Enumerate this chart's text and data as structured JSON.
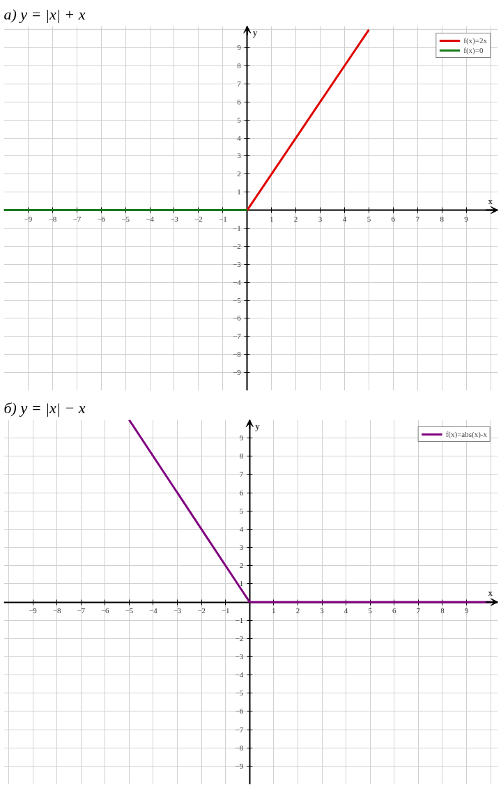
{
  "chart_data": [
    {
      "type": "line",
      "title": "а) y = |x| + x",
      "xlabel": "x",
      "ylabel": "y",
      "series": [
        {
          "name": "f(x)=2x",
          "color": "#e00000",
          "x": [
            0,
            5
          ],
          "values": [
            0,
            10
          ]
        },
        {
          "name": "f(x)=0",
          "color": "#1a7a1a",
          "x": [
            -10,
            0
          ],
          "values": [
            0,
            0
          ]
        }
      ],
      "xlim": [
        -10,
        10.3
      ],
      "ylim": [
        -10,
        10.2
      ],
      "xticks": [
        -9,
        -8,
        -7,
        -6,
        -5,
        -4,
        -3,
        -2,
        -1,
        1,
        2,
        3,
        4,
        5,
        6,
        7,
        8,
        9
      ],
      "yticks": [
        -9,
        -8,
        -7,
        -6,
        -5,
        -4,
        -3,
        -2,
        -1,
        1,
        2,
        3,
        4,
        5,
        6,
        7,
        8,
        9
      ],
      "grid": true,
      "legend": "top right",
      "marker": "none",
      "line_style": "solid"
    },
    {
      "type": "line",
      "title": "б) y = |x| − x",
      "xlabel": "x",
      "ylabel": "y",
      "series": [
        {
          "name": "f(x)=abs(x)-x",
          "color": "#800080",
          "x": [
            -5,
            0,
            10
          ],
          "values": [
            10,
            0,
            0
          ]
        }
      ],
      "xlim": [
        -10.2,
        10.3
      ],
      "ylim": [
        -10,
        10
      ],
      "xticks": [
        -9,
        -8,
        -7,
        -6,
        -5,
        -4,
        -3,
        -2,
        -1,
        1,
        2,
        3,
        4,
        5,
        6,
        7,
        8,
        9
      ],
      "yticks": [
        -9,
        -8,
        -7,
        -6,
        -5,
        -4,
        -3,
        -2,
        -1,
        1,
        2,
        3,
        4,
        5,
        6,
        7,
        8,
        9
      ],
      "grid": true,
      "legend": "top right",
      "marker": "none",
      "line_style": "solid"
    }
  ]
}
